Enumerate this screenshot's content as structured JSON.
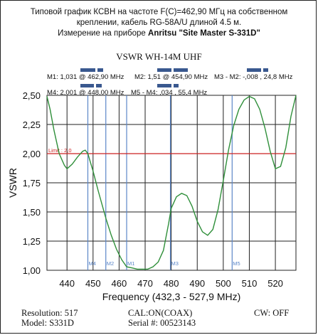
{
  "header": {
    "line1": "Типовой график КСВН на частоте F(С)=462,90 МГц на собственном",
    "line2": "креплении, кабель RG-58A/U длиной 4.5 м.",
    "line3_prefix": "Измерение на приборе ",
    "line3_bold": "Anritsu \"Site Master S-331D\""
  },
  "markers_info": {
    "m1": "M1: 1,031  @ 462,90 MHz",
    "m2": "M2: 1,51  @ 454,90 MHz",
    "m3m2": "M3 - M2: -,008  , 24,8 MHz",
    "m4": "M4: 2,001  @ 448,00 MHz",
    "m5m4": "M5 - M4: ,034  , 55,4 MHz"
  },
  "footer": {
    "resolution": "Resolution:  517",
    "model": "Model: S331D",
    "cal": "CAL:ON(COAX)",
    "serial": "Serial #: 00523143",
    "cw": "CW: OFF"
  },
  "colors": {
    "trace": "#2f8f3a",
    "limit": "#cc2222",
    "marker": "#5b86c8",
    "grid": "#222222",
    "bars": "#39588f"
  },
  "chart_data": {
    "type": "line",
    "title": "VSWR WH-14M UHF",
    "xlabel": "Frequency (432,3 - 527,9 MHz)",
    "ylabel": "VSWR",
    "xlim": [
      432.3,
      527.9
    ],
    "ylim": [
      1.0,
      2.5
    ],
    "xticks": [
      440,
      450,
      460,
      470,
      480,
      490,
      500,
      510,
      520
    ],
    "yticks": [
      1.0,
      1.25,
      1.5,
      1.75,
      2.0,
      2.25,
      2.5
    ],
    "xtick_labels": [
      "440",
      "450",
      "460",
      "470",
      "480",
      "490",
      "500",
      "510",
      "520"
    ],
    "ytick_labels": [
      "1,00",
      "1,25",
      "1,50",
      "1,75",
      "2,00",
      "2,25",
      "2,50"
    ],
    "limit": {
      "value": 2.0,
      "label": "Limit : 2,0"
    },
    "markers": [
      {
        "name": "M4",
        "x": 448.0
      },
      {
        "name": "M2",
        "x": 454.9
      },
      {
        "name": "M1",
        "x": 462.9
      },
      {
        "name": "M3",
        "x": 479.7
      },
      {
        "name": "M5",
        "x": 503.4
      }
    ],
    "series": [
      {
        "x": [
          432.3,
          433.5,
          435,
          437,
          439,
          440,
          442,
          444,
          446,
          447,
          448,
          450,
          452,
          454,
          455,
          457,
          459,
          461,
          462.9,
          465,
          467,
          469,
          471,
          473,
          475,
          477,
          479,
          480,
          482,
          484,
          486,
          488,
          490,
          492,
          494,
          496,
          498,
          500,
          502,
          504,
          506,
          508,
          510,
          512,
          514,
          516,
          518,
          520,
          522,
          524,
          526,
          527.9
        ],
        "y": [
          2.49,
          2.38,
          2.2,
          2.0,
          1.9,
          1.87,
          1.91,
          1.97,
          2.02,
          2.03,
          2.0,
          1.85,
          1.68,
          1.52,
          1.44,
          1.3,
          1.18,
          1.09,
          1.03,
          1.02,
          1.01,
          1.01,
          1.01,
          1.03,
          1.07,
          1.17,
          1.4,
          1.53,
          1.63,
          1.66,
          1.64,
          1.55,
          1.42,
          1.33,
          1.3,
          1.35,
          1.52,
          1.77,
          2.03,
          2.24,
          2.38,
          2.46,
          2.49,
          2.47,
          2.38,
          2.22,
          2.02,
          1.87,
          1.89,
          2.05,
          2.32,
          2.5
        ]
      }
    ]
  }
}
